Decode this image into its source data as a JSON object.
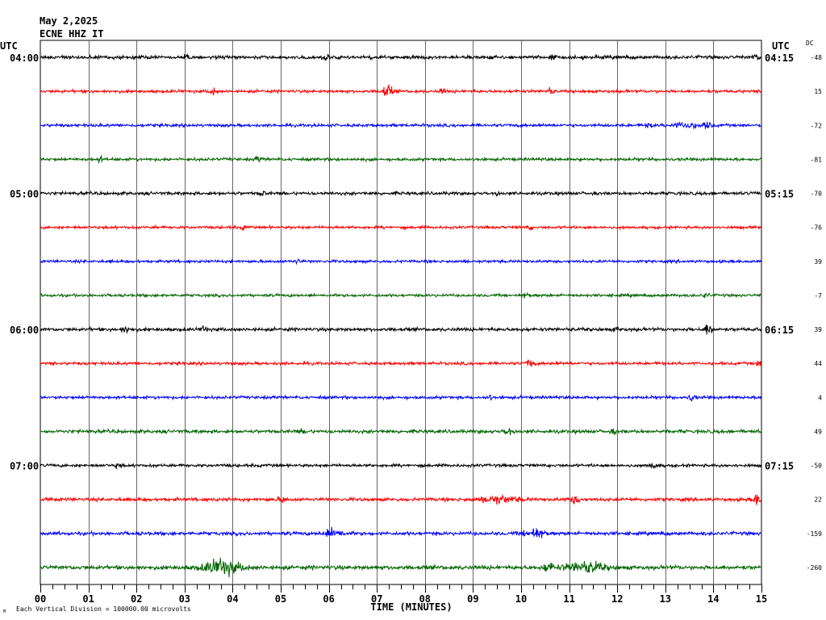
{
  "header": {
    "date": "May 2,2025",
    "station": "ECNE HHZ IT",
    "utc_left": "UTC",
    "utc_right": "UTC",
    "dc_label": "DC"
  },
  "footer": {
    "scale_note": "Each Vertical Division = 100000.00 microvolts"
  },
  "chart_data": {
    "type": "line",
    "xlabel": "TIME (MINUTES)",
    "ylabel": "",
    "xlim": [
      0,
      15
    ],
    "x_ticks": [
      "00",
      "01",
      "02",
      "03",
      "04",
      "05",
      "06",
      "07",
      "08",
      "09",
      "10",
      "11",
      "12",
      "13",
      "14",
      "15"
    ],
    "left_time_labels": [
      {
        "row": 0,
        "label": "04:00"
      },
      {
        "row": 4,
        "label": "05:00"
      },
      {
        "row": 8,
        "label": "06:00"
      },
      {
        "row": 12,
        "label": "07:00"
      }
    ],
    "right_time_labels": [
      {
        "row": 0,
        "label": "04:15"
      },
      {
        "row": 4,
        "label": "05:15"
      },
      {
        "row": 8,
        "label": "06:15"
      },
      {
        "row": 12,
        "label": "07:15"
      }
    ],
    "trace_colors": [
      "#000000",
      "#ff0000",
      "#0000ff",
      "#006400"
    ],
    "dc_offsets": [
      "-48",
      "15",
      "-72",
      "-81",
      "-70",
      "-76",
      "39",
      "-7",
      "39",
      "44",
      "4",
      "49",
      "-50",
      "22",
      "-159",
      "-260"
    ],
    "grid": true
  }
}
